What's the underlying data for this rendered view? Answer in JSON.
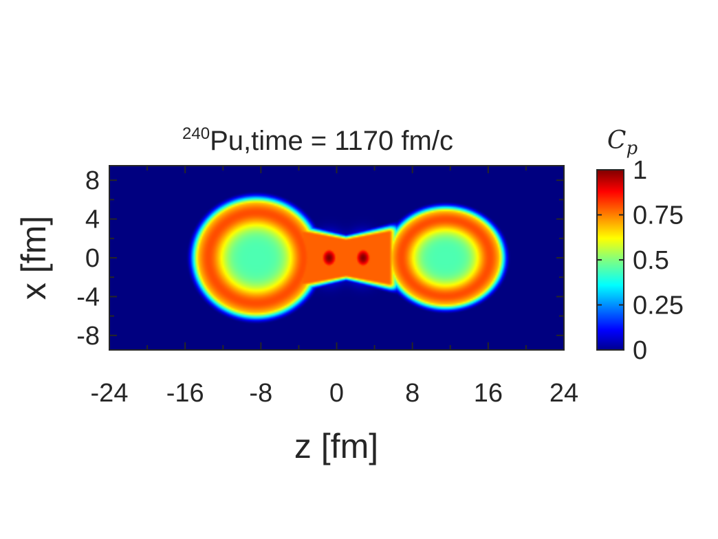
{
  "chart_data": {
    "type": "heatmap",
    "title": {
      "superscript": "240",
      "text": "Pu,time = 1170 fm/c"
    },
    "xlabel": "z [fm]",
    "ylabel": "x [fm]",
    "xlim": [
      -24,
      24
    ],
    "ylim": [
      -9.5,
      9.5
    ],
    "xticks": [
      -24,
      -16,
      -8,
      0,
      8,
      16,
      24
    ],
    "xtick_labels": [
      "-24",
      "-16",
      "-8",
      "0",
      "8",
      "16",
      "24"
    ],
    "yticks": [
      8,
      4,
      0,
      -4,
      -8
    ],
    "ytick_labels": [
      "8",
      "4",
      "0",
      "-4",
      "-8"
    ],
    "colorbar": {
      "label_main": "C",
      "label_sub": "p",
      "range": [
        0,
        1
      ],
      "ticks": [
        0,
        0.25,
        0.5,
        0.75,
        1
      ],
      "tick_labels": [
        "0",
        "0.25",
        "0.5",
        "0.75",
        "1"
      ],
      "colormap": "jet"
    },
    "features": [
      {
        "name": "left fragment",
        "center_z": -8.5,
        "center_x": 0,
        "half_length_z": 7,
        "half_width_x": 6.5,
        "core_value": 0.45,
        "rim_value": 0.8
      },
      {
        "name": "right fragment",
        "center_z": 11.5,
        "center_x": 0,
        "half_length_z": 6.5,
        "half_width_x": 5.5,
        "core_value": 0.45,
        "rim_value": 0.8
      },
      {
        "name": "neck maximum left",
        "center_z": -0.8,
        "center_x": 0,
        "value": 1.0
      },
      {
        "name": "neck maximum right",
        "center_z": 2.8,
        "center_x": 0,
        "value": 1.0
      }
    ],
    "background_value": 0.0,
    "grid": false
  }
}
